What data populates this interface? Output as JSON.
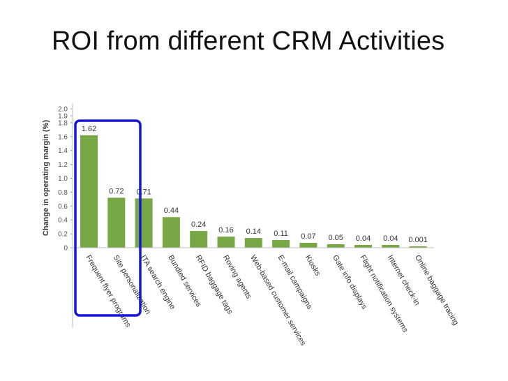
{
  "slide": {
    "title": "ROI from different CRM Activities"
  },
  "colors": {
    "bar": "#78A845",
    "highlight_box": "#1616D6",
    "axis": "#888888"
  },
  "chart_data": {
    "type": "bar",
    "title": "",
    "xlabel": "",
    "ylabel": "Change in operating margin (%)",
    "ylim": [
      0,
      2.0
    ],
    "yticks": [
      "0",
      "0.2",
      "0.4",
      "0.6",
      "0.8",
      "1.0",
      "1.2",
      "1.4",
      "1.6",
      "1.8",
      "1.9",
      "2.0"
    ],
    "ytick_values": [
      0,
      0.2,
      0.4,
      0.6,
      0.8,
      1.0,
      1.2,
      1.4,
      1.6,
      1.8,
      1.9,
      2.0
    ],
    "grid": false,
    "categories": [
      "Frequent flyer programs",
      "Site personalization",
      "ITA search engine",
      "Bundled services",
      "RFID baggage tags",
      "Roving agents",
      "Web-based customer services",
      "E-mail campaigns",
      "Kiosks",
      "Gate info displays",
      "Flight notification systems",
      "Internet check-in",
      "Online baggage tracing"
    ],
    "values": [
      1.62,
      0.72,
      0.71,
      0.44,
      0.24,
      0.16,
      0.14,
      0.11,
      0.07,
      0.05,
      0.04,
      0.04,
      0.001
    ],
    "value_labels": [
      "1.62",
      "0.72",
      "0.71",
      "0.44",
      "0.24",
      "0.16",
      "0.14",
      "0.11",
      "0.07",
      "0.05",
      "0.04",
      "0.04",
      "0.001"
    ],
    "highlighted_categories": [
      "Frequent flyer programs",
      "Site personalization",
      "ITA search engine"
    ]
  }
}
